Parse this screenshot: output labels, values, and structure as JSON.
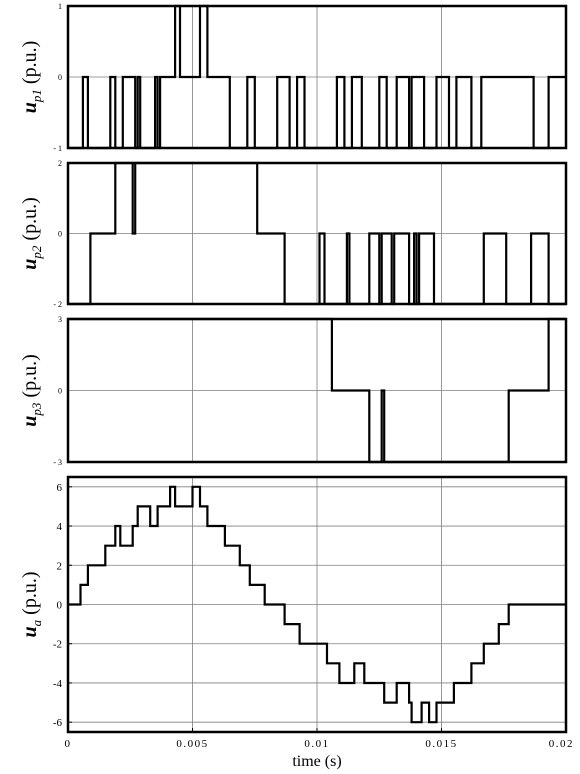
{
  "chart_data": [
    {
      "type": "line",
      "ylabel_var": "u",
      "ylabel_sub": "p1",
      "ylabel_unit": " (p.u.)",
      "xlim": [
        0,
        0.02
      ],
      "ylim": [
        -1,
        1
      ],
      "yticks": [
        -1,
        0,
        1
      ],
      "ytick_labels": [
        "- 1",
        "0",
        "1"
      ],
      "grid": true,
      "series": [
        {
          "x": [
            0,
            0.0006,
            0.0006,
            0.0008,
            0.0008,
            0.0017,
            0.0017,
            0.0019,
            0.0019,
            0.0022,
            0.0022,
            0.0027,
            0.0027,
            0.0028,
            0.0028,
            0.0029,
            0.0029,
            0.0035,
            0.0035,
            0.0036,
            0.0036,
            0.0037,
            0.0037,
            0.0043,
            0.0043,
            0.0045,
            0.0045,
            0.0053,
            0.0053,
            0.0056,
            0.0056,
            0.0065,
            0.0065,
            0.0072,
            0.0072,
            0.0075,
            0.0075,
            0.0084,
            0.0084,
            0.0089,
            0.0089,
            0.0092,
            0.0092,
            0.0095,
            0.0095,
            0.0108,
            0.0108,
            0.0111,
            0.0111,
            0.0114,
            0.0114,
            0.0118,
            0.0118,
            0.0125,
            0.0125,
            0.0128,
            0.0128,
            0.0132,
            0.0132,
            0.0137,
            0.0137,
            0.0138,
            0.0138,
            0.0143,
            0.0143,
            0.0148,
            0.0148,
            0.0153,
            0.0153,
            0.0156,
            0.0156,
            0.0162,
            0.0162,
            0.0166,
            0.0166,
            0.0187,
            0.0187,
            0.0193,
            0.0193,
            0.02
          ],
          "y": [
            -1,
            -1,
            0,
            0,
            -1,
            -1,
            0,
            0,
            -1,
            -1,
            0,
            0,
            -1,
            -1,
            0,
            0,
            -1,
            -1,
            0,
            0,
            -1,
            -1,
            0,
            0,
            1,
            1,
            0,
            0,
            1,
            1,
            0,
            0,
            -1,
            -1,
            0,
            0,
            -1,
            -1,
            0,
            0,
            -1,
            -1,
            0,
            0,
            -1,
            -1,
            0,
            0,
            -1,
            -1,
            0,
            0,
            -1,
            -1,
            0,
            0,
            -1,
            -1,
            0,
            0,
            -1,
            -1,
            0,
            0,
            -1,
            -1,
            0,
            0,
            -1,
            -1,
            0,
            0,
            -1,
            -1,
            0,
            0,
            -1,
            -1,
            0,
            0
          ]
        }
      ]
    },
    {
      "type": "line",
      "ylabel_var": "u",
      "ylabel_sub": "p2",
      "ylabel_unit": " (p.u.)",
      "xlim": [
        0,
        0.02
      ],
      "ylim": [
        -2,
        2
      ],
      "yticks": [
        -2,
        0,
        2
      ],
      "ytick_labels": [
        "- 2",
        "0",
        "2"
      ],
      "grid": true,
      "series": [
        {
          "x": [
            0,
            0.0009,
            0.0009,
            0.0019,
            0.0019,
            0.0026,
            0.0026,
            0.0027,
            0.0027,
            0.0076,
            0.0076,
            0.0087,
            0.0087,
            0.0101,
            0.0101,
            0.0103,
            0.0103,
            0.0112,
            0.0112,
            0.0113,
            0.0113,
            0.0121,
            0.0121,
            0.0125,
            0.0125,
            0.0126,
            0.0126,
            0.013,
            0.013,
            0.0131,
            0.0131,
            0.0137,
            0.0137,
            0.0139,
            0.0139,
            0.014,
            0.014,
            0.0141,
            0.0141,
            0.0147,
            0.0147,
            0.0167,
            0.0167,
            0.0176,
            0.0176,
            0.0186,
            0.0186,
            0.0193,
            0.0193,
            0.02
          ],
          "y": [
            -2,
            -2,
            0,
            0,
            2,
            2,
            0,
            0,
            2,
            2,
            0,
            0,
            -2,
            -2,
            0,
            0,
            -2,
            -2,
            0,
            0,
            -2,
            -2,
            0,
            0,
            -2,
            -2,
            0,
            0,
            -2,
            -2,
            0,
            0,
            -2,
            -2,
            0,
            0,
            -2,
            -2,
            0,
            0,
            -2,
            -2,
            0,
            0,
            -2,
            -2,
            0,
            0,
            -2,
            -2
          ]
        }
      ]
    },
    {
      "type": "line",
      "ylabel_var": "u",
      "ylabel_sub": "p3",
      "ylabel_unit": " (p.u.)",
      "xlim": [
        0,
        0.02
      ],
      "ylim": [
        -3,
        3
      ],
      "yticks": [
        -3,
        0,
        3
      ],
      "ytick_labels": [
        "- 3",
        "0",
        "3"
      ],
      "grid": true,
      "series": [
        {
          "x": [
            0,
            0.0106,
            0.0106,
            0.0121,
            0.0121,
            0.0126,
            0.0126,
            0.0127,
            0.0127,
            0.0177,
            0.0177,
            0.0193,
            0.0193,
            0.02
          ],
          "y": [
            3,
            3,
            0,
            0,
            -3,
            -3,
            0,
            0,
            -3,
            -3,
            0,
            0,
            3,
            3
          ]
        }
      ]
    },
    {
      "type": "line",
      "ylabel_var": "u",
      "ylabel_sub": "a",
      "ylabel_unit": " (p.u.)",
      "xlabel": "time (s)",
      "xlim": [
        0,
        0.02
      ],
      "ylim": [
        -6.5,
        6.5
      ],
      "yticks": [
        -6,
        -4,
        -2,
        0,
        2,
        4,
        6
      ],
      "ytick_labels": [
        "-6",
        "-4",
        "-2",
        "0",
        "2",
        "4",
        "6"
      ],
      "xticks": [
        0,
        0.005,
        0.01,
        0.015,
        0.02
      ],
      "xtick_labels": [
        "0",
        "0.005",
        "0.01",
        "0.015",
        "0.02"
      ],
      "grid": true,
      "series": [
        {
          "x": [
            0,
            0.0005,
            0.0005,
            0.0008,
            0.0008,
            0.0015,
            0.0015,
            0.0019,
            0.0019,
            0.0021,
            0.0021,
            0.0026,
            0.0026,
            0.0027,
            0.0027,
            0.0028,
            0.0028,
            0.0033,
            0.0033,
            0.0036,
            0.0036,
            0.0037,
            0.0037,
            0.0041,
            0.0041,
            0.0043,
            0.0043,
            0.0045,
            0.0045,
            0.005,
            0.005,
            0.0053,
            0.0053,
            0.0056,
            0.0056,
            0.0063,
            0.0063,
            0.0069,
            0.0069,
            0.0073,
            0.0073,
            0.0079,
            0.0079,
            0.0083,
            0.0083,
            0.0087,
            0.0087,
            0.0093,
            0.0093,
            0.0096,
            0.0096,
            0.0104,
            0.0104,
            0.0107,
            0.0107,
            0.0109,
            0.0109,
            0.0115,
            0.0115,
            0.0119,
            0.0119,
            0.0121,
            0.0121,
            0.0126,
            0.0126,
            0.0127,
            0.0127,
            0.0132,
            0.0132,
            0.0137,
            0.0137,
            0.0138,
            0.0138,
            0.0142,
            0.0142,
            0.0145,
            0.0145,
            0.0148,
            0.0148,
            0.0151,
            0.0151,
            0.0155,
            0.0155,
            0.0162,
            0.0162,
            0.0167,
            0.0167,
            0.0173,
            0.0173,
            0.0177,
            0.0177,
            0.0185,
            0.0185,
            0.0189,
            0.0189,
            0.0193,
            0.0193,
            0.0196,
            0.0196,
            0.02
          ],
          "y": [
            0,
            0,
            1,
            1,
            2,
            2,
            3,
            3,
            4,
            4,
            3,
            3,
            4,
            4,
            4,
            4,
            5,
            5,
            4,
            4,
            5,
            5,
            5,
            5,
            6,
            6,
            5,
            5,
            5,
            5,
            6,
            6,
            5,
            5,
            4,
            4,
            3,
            3,
            2,
            2,
            1,
            1,
            0,
            0,
            0,
            0,
            -1,
            -1,
            -2,
            -2,
            -2,
            -2,
            -3,
            -3,
            -3,
            -3,
            -4,
            -4,
            -3,
            -3,
            -4,
            -4,
            -4,
            -4,
            -4,
            -4,
            -5,
            -5,
            -4,
            -4,
            -5,
            -5,
            -6,
            -6,
            -5,
            -5,
            -6,
            -6,
            -5,
            -5,
            -5,
            -5,
            -4,
            -4,
            -3,
            -3,
            -2,
            -2,
            -1,
            -1,
            0,
            0,
            0,
            0,
            0,
            0,
            0,
            0,
            0,
            0
          ]
        }
      ]
    }
  ]
}
